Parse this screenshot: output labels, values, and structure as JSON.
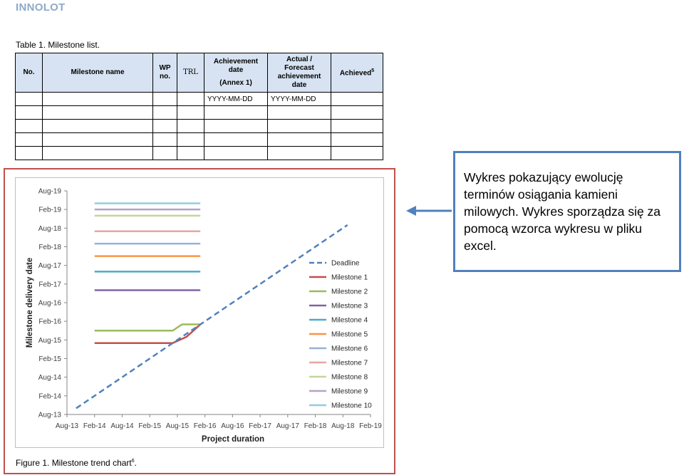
{
  "header": {
    "brand": "INNOLOT"
  },
  "table": {
    "caption": "Table 1. Milestone list.",
    "headers": {
      "no": "No.",
      "name": "Milestone name",
      "wp_line1": "WP",
      "wp_line2": "no.",
      "trl": "TRL",
      "ach_line1": "Achievement",
      "ach_line2": "date",
      "ach_line3": "(Annex 1)",
      "fc_line1": "Actual /",
      "fc_line2": "Forecast",
      "fc_line3": "achievement",
      "fc_line4": "date",
      "achieved": "Achieved",
      "achieved_sup": "5"
    },
    "rows": [
      [
        "",
        "",
        "",
        "",
        "YYYY-MM-DD",
        "YYYY-MM-DD",
        ""
      ],
      [
        "",
        "",
        "",
        "",
        "",
        "",
        ""
      ],
      [
        "",
        "",
        "",
        "",
        "",
        "",
        ""
      ],
      [
        "",
        "",
        "",
        "",
        "",
        "",
        ""
      ],
      [
        "",
        "",
        "",
        "",
        "",
        "",
        ""
      ]
    ]
  },
  "figure": {
    "caption": "Figure 1. Milestone trend chart",
    "caption_sup": "6",
    "caption_end": "."
  },
  "callout": {
    "text": "Wykres pokazujący ewolucję terminów osiągania kamieni milowych. Wykres sporządza się za pomocą wzorca wykresu w pliku excel."
  },
  "colors": {
    "frame": "#c0504d",
    "callout_border": "#4f81bd",
    "arrow": "#4f81bd"
  },
  "chart_data": {
    "type": "line",
    "xlabel": "Project duration",
    "ylabel": "Milestone delivery date",
    "x_ticks": [
      "Aug-13",
      "Feb-14",
      "Aug-14",
      "Feb-15",
      "Aug-15",
      "Feb-16",
      "Aug-16",
      "Feb-17",
      "Aug-17",
      "Feb-18",
      "Aug-18",
      "Feb-19"
    ],
    "y_ticks": [
      "Aug-13",
      "Feb-14",
      "Aug-14",
      "Feb-15",
      "Aug-15",
      "Feb-16",
      "Aug-16",
      "Feb-17",
      "Aug-17",
      "Feb-18",
      "Aug-18",
      "Feb-19",
      "Aug-19"
    ],
    "legend_position": "right",
    "series": [
      {
        "name": "Deadline",
        "color": "#4f81bd",
        "dash": true,
        "points": [
          [
            "2013-10-01",
            "2013-10-01"
          ],
          [
            "2018-09-01",
            "2018-09-01"
          ]
        ]
      },
      {
        "name": "Milestone 1",
        "color": "#c0504d",
        "points": [
          [
            "2014-02-01",
            "2015-07-01"
          ],
          [
            "2015-07-01",
            "2015-07-01"
          ],
          [
            "2015-10-01",
            "2015-09-01"
          ],
          [
            "2016-01-01",
            "2016-01-01"
          ]
        ]
      },
      {
        "name": "Milestone 2",
        "color": "#9bbb59",
        "points": [
          [
            "2014-02-01",
            "2015-11-01"
          ],
          [
            "2015-07-01",
            "2015-11-01"
          ],
          [
            "2015-09-01",
            "2016-01-01"
          ],
          [
            "2016-01-01",
            "2016-01-01"
          ]
        ]
      },
      {
        "name": "Milestone 3",
        "color": "#8064a2",
        "points": [
          [
            "2014-02-01",
            "2016-12-01"
          ],
          [
            "2016-01-01",
            "2016-12-01"
          ]
        ]
      },
      {
        "name": "Milestone 4",
        "color": "#4bacc6",
        "points": [
          [
            "2014-02-01",
            "2017-06-01"
          ],
          [
            "2016-01-01",
            "2017-06-01"
          ]
        ]
      },
      {
        "name": "Milestone 5",
        "color": "#f79646",
        "points": [
          [
            "2014-02-01",
            "2017-11-01"
          ],
          [
            "2016-01-01",
            "2017-11-01"
          ]
        ]
      },
      {
        "name": "Milestone 6",
        "color": "#95b3d7",
        "points": [
          [
            "2014-02-01",
            "2018-03-01"
          ],
          [
            "2016-01-01",
            "2018-03-01"
          ]
        ]
      },
      {
        "name": "Milestone 7",
        "color": "#e6a6a4",
        "points": [
          [
            "2014-02-01",
            "2018-07-01"
          ],
          [
            "2016-01-01",
            "2018-07-01"
          ]
        ]
      },
      {
        "name": "Milestone 8",
        "color": "#c3d69b",
        "points": [
          [
            "2014-02-01",
            "2018-12-01"
          ],
          [
            "2016-01-01",
            "2018-12-01"
          ]
        ]
      },
      {
        "name": "Milestone 9",
        "color": "#b3a2c7",
        "points": [
          [
            "2014-02-01",
            "2019-02-01"
          ],
          [
            "2016-01-01",
            "2019-02-01"
          ]
        ]
      },
      {
        "name": "Milestone 10",
        "color": "#93cddd",
        "points": [
          [
            "2014-02-01",
            "2019-04-01"
          ],
          [
            "2016-01-01",
            "2019-04-01"
          ]
        ]
      }
    ]
  }
}
